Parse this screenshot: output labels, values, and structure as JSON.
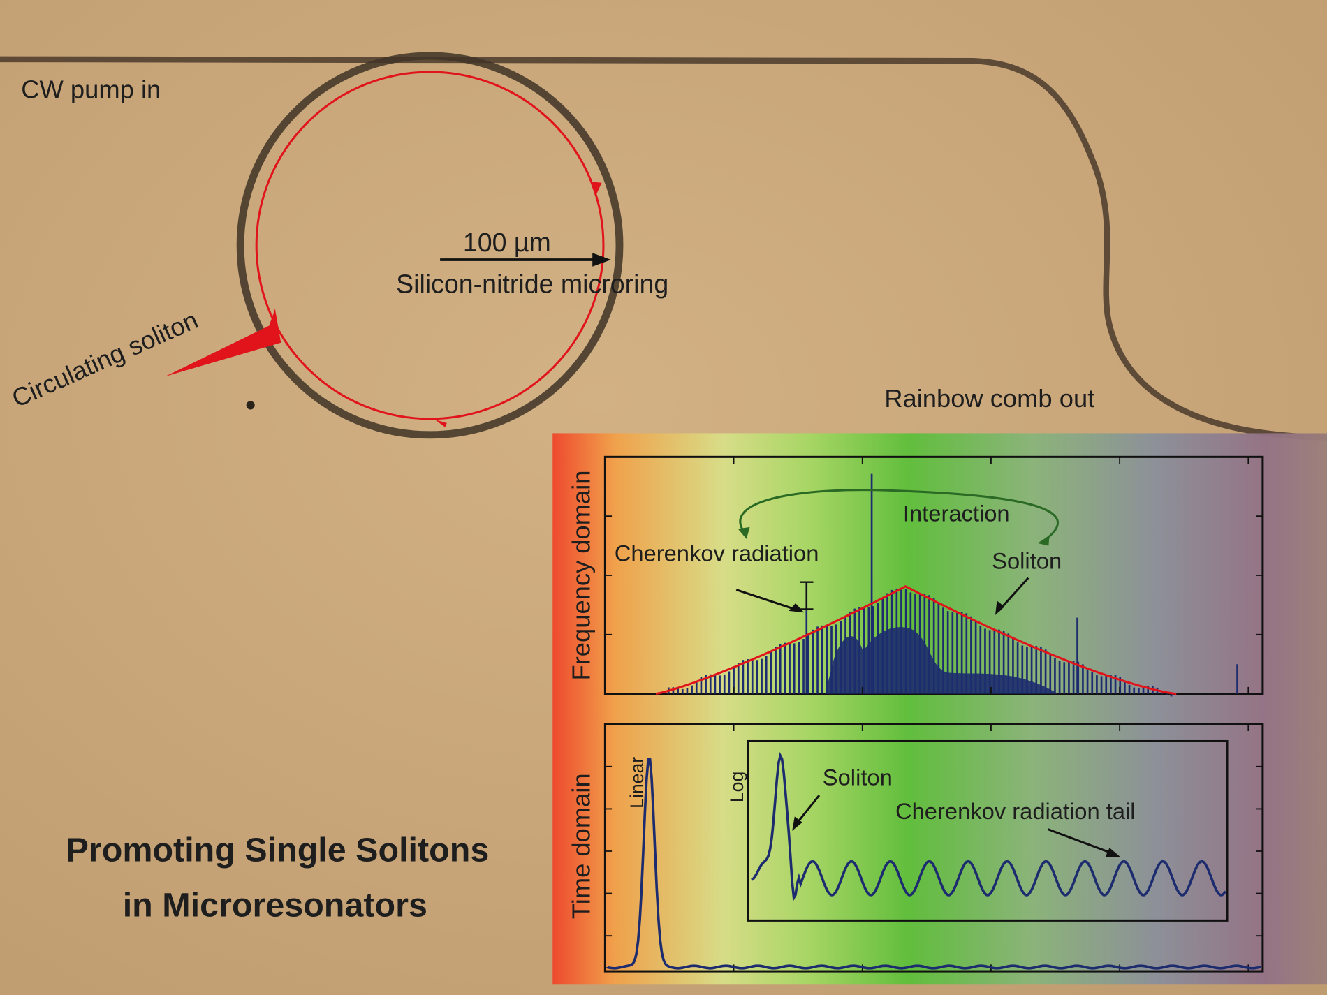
{
  "labels": {
    "pump_in": "CW pump in",
    "scale_bar": "100 µm",
    "microring": "Silicon-nitride microring",
    "circulating_soliton": "Circulating soliton",
    "comb_out": "Rainbow comb out",
    "title_line_1": "Promoting Single Solitons",
    "title_line_2": "in Microresonators"
  },
  "frequency_panel": {
    "axis_label": "Frequency domain",
    "interaction": "Interaction",
    "cherenkov": "Cherenkov radiation",
    "soliton": "Soliton"
  },
  "time_panel": {
    "axis_label": "Time domain",
    "linear": "Linear",
    "log": "Log",
    "soliton": "Soliton",
    "cherenkov_tail": "Cherenkov radiation tail"
  }
}
